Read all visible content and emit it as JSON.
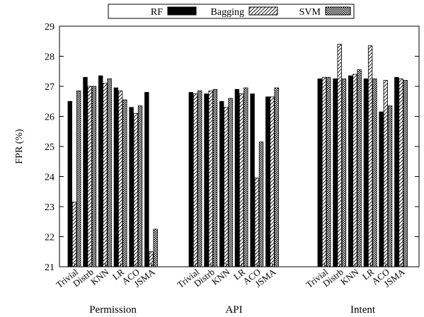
{
  "chart_data": {
    "type": "bar",
    "ylabel": "FPR (%)",
    "xlabel": "",
    "ylim": [
      21,
      29
    ],
    "yticks": [
      21,
      22,
      23,
      24,
      25,
      26,
      27,
      28,
      29
    ],
    "groups": [
      "Permission",
      "API",
      "Intent"
    ],
    "categories": [
      "Trivial",
      "Distrb",
      "KNN",
      "LR",
      "ACO",
      "JSMA"
    ],
    "legend_position": "top-center",
    "grid": false,
    "series": [
      {
        "name": "RF",
        "pattern": "solid",
        "values": [
          [
            26.5,
            27.3,
            27.35,
            26.95,
            26.3,
            26.8
          ],
          [
            26.8,
            26.75,
            26.5,
            26.9,
            26.75,
            26.65
          ],
          [
            27.25,
            27.25,
            27.35,
            27.25,
            26.15,
            27.3
          ]
        ]
      },
      {
        "name": "Bagging",
        "pattern": "hatch",
        "values": [
          [
            23.15,
            27.0,
            27.1,
            26.85,
            26.1,
            21.5
          ],
          [
            26.75,
            26.85,
            26.3,
            26.75,
            23.95,
            26.65
          ],
          [
            27.3,
            28.4,
            27.4,
            28.35,
            27.2,
            27.25
          ]
        ]
      },
      {
        "name": "SVM",
        "pattern": "checker",
        "values": [
          [
            26.85,
            27.0,
            27.25,
            26.55,
            26.35,
            22.25
          ],
          [
            26.85,
            26.9,
            26.6,
            26.95,
            25.15,
            26.95
          ],
          [
            27.3,
            27.25,
            27.55,
            27.25,
            26.35,
            27.2
          ]
        ]
      }
    ]
  }
}
